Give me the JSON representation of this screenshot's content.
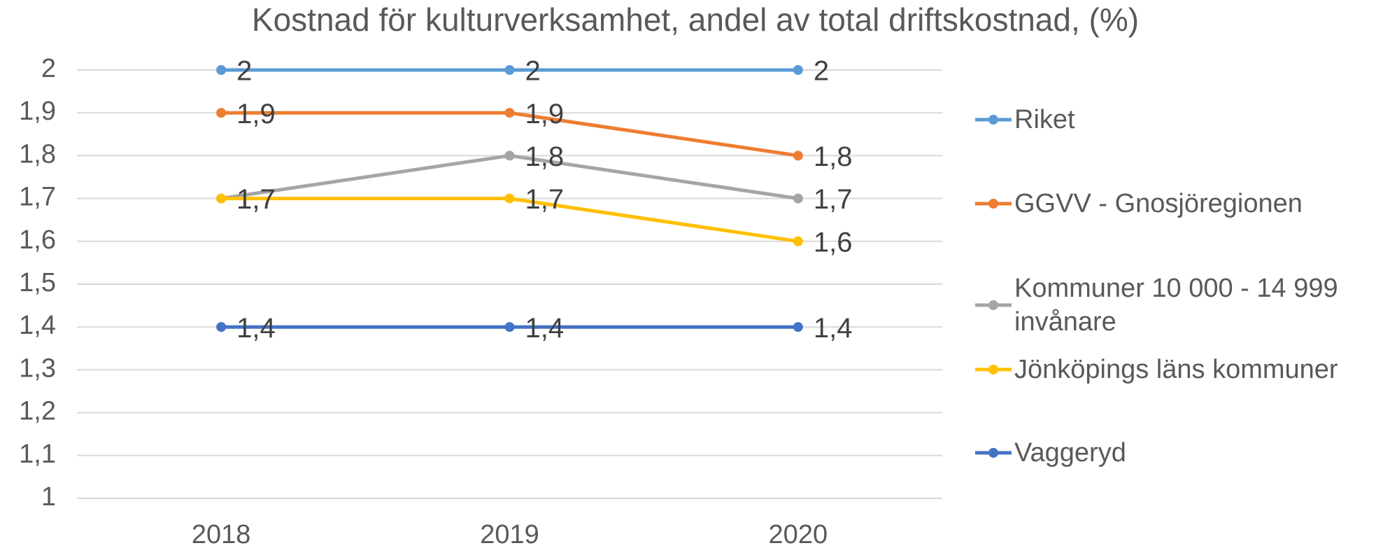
{
  "chart_data": {
    "type": "line",
    "title": "Kostnad för kulturverksamhet, andel av total driftskostnad, (%)",
    "categories": [
      "2018",
      "2019",
      "2020"
    ],
    "series": [
      {
        "name": "Riket",
        "color": "#5b9bd5",
        "values": [
          2,
          2,
          2
        ],
        "value_labels": [
          "2",
          "2",
          "2"
        ]
      },
      {
        "name": "GGVV - Gnosjöregionen",
        "color": "#ed7d31",
        "values": [
          1.9,
          1.9,
          1.8
        ],
        "value_labels": [
          "1,9",
          "1,9",
          "1,8"
        ]
      },
      {
        "name": "Kommuner 10 000 - 14 999 invånare",
        "color": "#a5a5a5",
        "values": [
          1.7,
          1.8,
          1.7
        ],
        "value_labels": [
          "1,7",
          "1,8",
          "1,7"
        ]
      },
      {
        "name": "Jönköpings läns kommuner",
        "color": "#ffc000",
        "values": [
          1.7,
          1.7,
          1.6
        ],
        "value_labels": [
          "1,7",
          "1,7",
          "1,6"
        ]
      },
      {
        "name": "Vaggeryd",
        "color": "#4472c4",
        "values": [
          1.4,
          1.4,
          1.4
        ],
        "value_labels": [
          "1,4",
          "1,4",
          "1,4"
        ]
      }
    ],
    "ylim": [
      1,
      2
    ],
    "yticks": [
      1,
      {
        "value": 1.1,
        "label": "1,1"
      },
      {
        "value": 1.2,
        "label": "1,2"
      },
      {
        "value": 1.3,
        "label": "1,3"
      },
      {
        "value": 1.4,
        "label": "1,4"
      },
      {
        "value": 1.5,
        "label": "1,5"
      },
      {
        "value": 1.6,
        "label": "1,6"
      },
      {
        "value": 1.7,
        "label": "1,7"
      },
      {
        "value": 1.8,
        "label": "1,8"
      },
      {
        "value": 1.9,
        "label": "1,9"
      },
      2
    ],
    "grid": true,
    "legend": "right"
  }
}
